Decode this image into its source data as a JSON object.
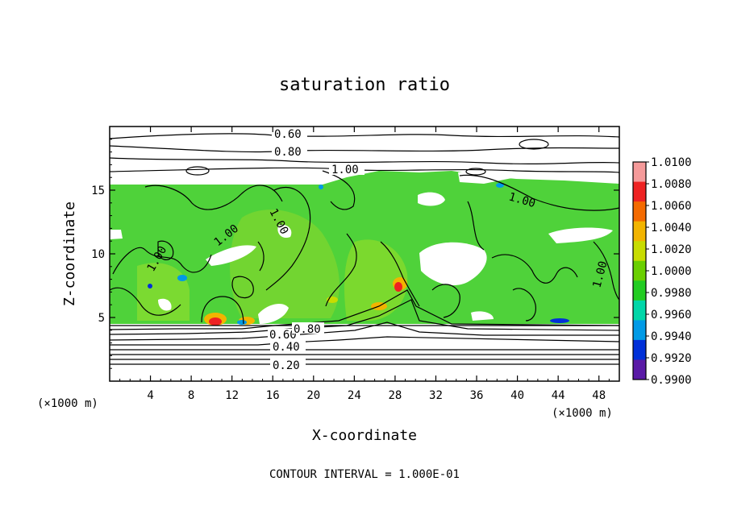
{
  "chart_data": {
    "type": "contour",
    "title": "saturation ratio",
    "xlabel": "X-coordinate",
    "ylabel": "Z-coordinate",
    "x_unit_label": "(×1000 m)",
    "y_unit_label": "(×1000 m)",
    "xlim": [
      0,
      50
    ],
    "ylim": [
      0,
      20
    ],
    "x_ticks": [
      4,
      8,
      12,
      16,
      20,
      24,
      28,
      32,
      36,
      40,
      44,
      48
    ],
    "y_ticks": [
      5,
      10,
      15
    ],
    "contour_labels": [
      {
        "text": "0.20",
        "x": 17.5,
        "z": 1.2
      },
      {
        "text": "0.40",
        "x": 17.5,
        "z": 2.6
      },
      {
        "text": "0.60",
        "x": 15.7,
        "z": 3.5
      },
      {
        "text": "0.80",
        "x": 19.5,
        "z": 3.9
      },
      {
        "text": "0.60",
        "x": 18.0,
        "z": 18.8
      },
      {
        "text": "0.80",
        "x": 18.0,
        "z": 17.6
      },
      {
        "text": "1.00",
        "x": 23.0,
        "z": 16.2
      },
      {
        "text": "1.00",
        "x": 40.0,
        "z": 14.3
      },
      {
        "text": "1.00",
        "x": 16.5,
        "z": 13.0
      },
      {
        "text": "1.00",
        "x": 12.0,
        "z": 11.0
      },
      {
        "text": "1.00",
        "x": 6.5,
        "z": 8.7
      },
      {
        "text": "1.00",
        "x": 48.5,
        "z": 8.2
      }
    ],
    "colorbar": {
      "labels": [
        "1.0100",
        "1.0080",
        "1.0060",
        "1.0040",
        "1.0020",
        "1.0000",
        "0.9980",
        "0.9960",
        "0.9940",
        "0.9920",
        "0.9900"
      ],
      "colors": [
        "#f59a9a",
        "#ee2222",
        "#f46a00",
        "#f2b400",
        "#c8dc00",
        "#6acf00",
        "#22cc22",
        "#00d6a8",
        "#009ae6",
        "#0030d8",
        "#5a1aa6"
      ]
    },
    "field_colors": {
      "saturated": "#4fd23a",
      "near_saturated": "#7ad630",
      "subsaturated_blank": "#ffffff"
    },
    "footer": "CONTOUR INTERVAL = 1.000E-01"
  }
}
